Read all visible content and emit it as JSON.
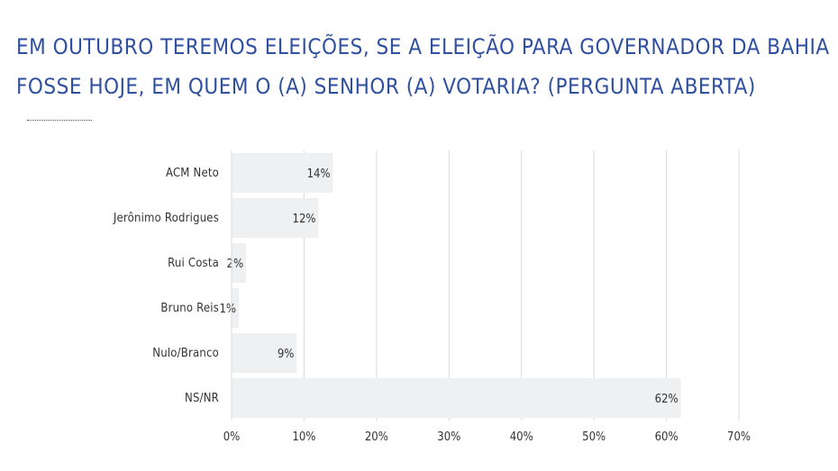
{
  "title": {
    "line1": "EM OUTUBRO TEREMOS ELEIÇÕES, SE A ELEIÇÃO PARA GOVERNADOR DA BAHIA",
    "line2": "FOSSE HOJE, EM QUEM O (A) SENHOR (A) VOTARIA? (PERGUNTA ABERTA)"
  },
  "colors": {
    "title": "#2f4fa0",
    "bar": "#eef0f1",
    "grid": "#d9d9d9",
    "text": "#333333"
  },
  "chart_data": {
    "type": "bar",
    "orientation": "horizontal",
    "categories": [
      "ACM Neto",
      "Jerônimo Rodrigues",
      "Rui Costa",
      "Bruno Reis",
      "Nulo/Branco",
      "NS/NR"
    ],
    "values": [
      14,
      12,
      2,
      1,
      9,
      62
    ],
    "value_labels": [
      "14%",
      "12%",
      "2%",
      "1%",
      "9%",
      "62%"
    ],
    "xlim": [
      0,
      70
    ],
    "xticks": [
      0,
      10,
      20,
      30,
      40,
      50,
      60,
      70
    ],
    "xtick_labels": [
      "0%",
      "10%",
      "20%",
      "30%",
      "40%",
      "50%",
      "60%",
      "70%"
    ],
    "grid": true,
    "legend": "none"
  }
}
